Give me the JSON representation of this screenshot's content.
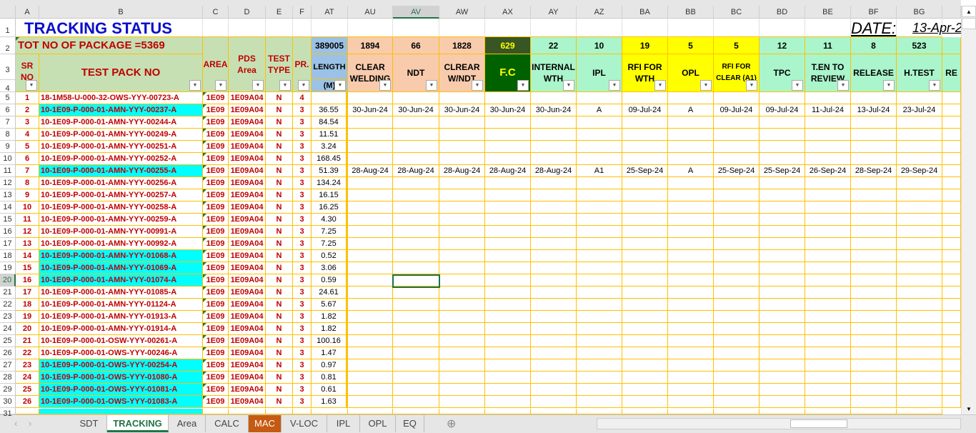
{
  "columns": [
    "A",
    "B",
    "C",
    "D",
    "E",
    "F",
    "AT",
    "AU",
    "AV",
    "AW",
    "AX",
    "AY",
    "AZ",
    "BA",
    "BB",
    "BC",
    "BD",
    "BE",
    "BF",
    "BG"
  ],
  "selected_column": "AV",
  "selected_row": 20,
  "title": "TRACKING STATUS",
  "date_label": "DATE:",
  "date_value": "13-Apr-2",
  "total_packages": "TOT NO OF PACKAGE =5369",
  "headers": {
    "sr": "SR NO",
    "pack": "TEST PACK NO",
    "area": "AREA",
    "pds": "PDS Area",
    "type": "TEST TYPE",
    "pr": "PR.",
    "length": "LENGTH",
    "length_unit": "(M)",
    "length_total": "389005"
  },
  "tracking_headers": [
    {
      "label": "CLEAR WELDING",
      "count": "1894",
      "color": "#f8cbad"
    },
    {
      "label": "NDT",
      "count": "66",
      "color": "#f8cbad"
    },
    {
      "label": "CLREAR W/NDT",
      "count": "1828",
      "color": "#f8cbad"
    },
    {
      "label": "F.C",
      "count": "629",
      "color": "#006100"
    },
    {
      "label": "INTERNAL WTH",
      "count": "22",
      "color": "#aaf5cb"
    },
    {
      "label": "IPL",
      "count": "10",
      "color": "#aaf5cb"
    },
    {
      "label": "RFI FOR WTH",
      "count": "19",
      "color": "#ffff00"
    },
    {
      "label": "OPL",
      "count": "5",
      "color": "#ffff00"
    },
    {
      "label": "RFI FOR CLEAR (A1)",
      "count": "5",
      "color": "#ffff00"
    },
    {
      "label": "TPC",
      "count": "12",
      "color": "#aaf5cb"
    },
    {
      "label": "T.EN TO REVIEW",
      "count": "11",
      "color": "#aaf5cb"
    },
    {
      "label": "RELEASE",
      "count": "8",
      "color": "#aaf5cb"
    },
    {
      "label": "H.TEST",
      "count": "523",
      "color": "#aaf5cb"
    },
    {
      "label": "RE",
      "count": "",
      "color": "#aaf5cb"
    }
  ],
  "rows": [
    {
      "sr": "1",
      "pack": "18-1M58-U-000-32-OWS-YYY-00723-A",
      "area": "1E09",
      "pds": "1E09A04",
      "type": "N",
      "pr": "4",
      "len": "",
      "hl": false,
      "t": []
    },
    {
      "sr": "2",
      "pack": "10-1E09-P-000-01-AMN-YYY-00237-A",
      "area": "1E09",
      "pds": "1E09A04",
      "type": "N",
      "pr": "3",
      "len": "36.55",
      "hl": true,
      "t": [
        "30-Jun-24",
        "30-Jun-24",
        "30-Jun-24",
        "30-Jun-24",
        "30-Jun-24",
        "A",
        "09-Jul-24",
        "A",
        "09-Jul-24",
        "09-Jul-24",
        "11-Jul-24",
        "13-Jul-24",
        "23-Jul-24"
      ]
    },
    {
      "sr": "3",
      "pack": "10-1E09-P-000-01-AMN-YYY-00244-A",
      "area": "1E09",
      "pds": "1E09A04",
      "type": "N",
      "pr": "3",
      "len": "84.54",
      "hl": false,
      "t": []
    },
    {
      "sr": "4",
      "pack": "10-1E09-P-000-01-AMN-YYY-00249-A",
      "area": "1E09",
      "pds": "1E09A04",
      "type": "N",
      "pr": "3",
      "len": "11.51",
      "hl": false,
      "t": []
    },
    {
      "sr": "5",
      "pack": "10-1E09-P-000-01-AMN-YYY-00251-A",
      "area": "1E09",
      "pds": "1E09A04",
      "type": "N",
      "pr": "3",
      "len": "3.24",
      "hl": false,
      "t": []
    },
    {
      "sr": "6",
      "pack": "10-1E09-P-000-01-AMN-YYY-00252-A",
      "area": "1E09",
      "pds": "1E09A04",
      "type": "N",
      "pr": "3",
      "len": "168.45",
      "hl": false,
      "t": []
    },
    {
      "sr": "7",
      "pack": "10-1E09-P-000-01-AMN-YYY-00255-A",
      "area": "1E09",
      "pds": "1E09A04",
      "type": "N",
      "pr": "3",
      "len": "51.39",
      "hl": true,
      "t": [
        "28-Aug-24",
        "28-Aug-24",
        "28-Aug-24",
        "28-Aug-24",
        "28-Aug-24",
        "A1",
        "25-Sep-24",
        "A",
        "25-Sep-24",
        "25-Sep-24",
        "26-Sep-24",
        "28-Sep-24",
        "29-Sep-24"
      ]
    },
    {
      "sr": "8",
      "pack": "10-1E09-P-000-01-AMN-YYY-00256-A",
      "area": "1E09",
      "pds": "1E09A04",
      "type": "N",
      "pr": "3",
      "len": "134.24",
      "hl": false,
      "t": []
    },
    {
      "sr": "9",
      "pack": "10-1E09-P-000-01-AMN-YYY-00257-A",
      "area": "1E09",
      "pds": "1E09A04",
      "type": "N",
      "pr": "3",
      "len": "16.15",
      "hl": false,
      "t": []
    },
    {
      "sr": "10",
      "pack": "10-1E09-P-000-01-AMN-YYY-00258-A",
      "area": "1E09",
      "pds": "1E09A04",
      "type": "N",
      "pr": "3",
      "len": "16.25",
      "hl": false,
      "t": []
    },
    {
      "sr": "11",
      "pack": "10-1E09-P-000-01-AMN-YYY-00259-A",
      "area": "1E09",
      "pds": "1E09A04",
      "type": "N",
      "pr": "3",
      "len": "4.30",
      "hl": false,
      "t": []
    },
    {
      "sr": "12",
      "pack": "10-1E09-P-000-01-AMN-YYY-00991-A",
      "area": "1E09",
      "pds": "1E09A04",
      "type": "N",
      "pr": "3",
      "len": "7.25",
      "hl": false,
      "t": []
    },
    {
      "sr": "13",
      "pack": "10-1E09-P-000-01-AMN-YYY-00992-A",
      "area": "1E09",
      "pds": "1E09A04",
      "type": "N",
      "pr": "3",
      "len": "7.25",
      "hl": false,
      "t": []
    },
    {
      "sr": "14",
      "pack": "10-1E09-P-000-01-AMN-YYY-01068-A",
      "area": "1E09",
      "pds": "1E09A04",
      "type": "N",
      "pr": "3",
      "len": "0.52",
      "hl": true,
      "t": []
    },
    {
      "sr": "15",
      "pack": "10-1E09-P-000-01-AMN-YYY-01069-A",
      "area": "1E09",
      "pds": "1E09A04",
      "type": "N",
      "pr": "3",
      "len": "3.06",
      "hl": true,
      "t": []
    },
    {
      "sr": "16",
      "pack": "10-1E09-P-000-01-AMN-YYY-01074-A",
      "area": "1E09",
      "pds": "1E09A04",
      "type": "N",
      "pr": "3",
      "len": "0.59",
      "hl": true,
      "t": []
    },
    {
      "sr": "17",
      "pack": "10-1E09-P-000-01-AMN-YYY-01085-A",
      "area": "1E09",
      "pds": "1E09A04",
      "type": "N",
      "pr": "3",
      "len": "24.61",
      "hl": false,
      "t": []
    },
    {
      "sr": "18",
      "pack": "10-1E09-P-000-01-AMN-YYY-01124-A",
      "area": "1E09",
      "pds": "1E09A04",
      "type": "N",
      "pr": "3",
      "len": "5.67",
      "hl": false,
      "t": []
    },
    {
      "sr": "19",
      "pack": "10-1E09-P-000-01-AMN-YYY-01913-A",
      "area": "1E09",
      "pds": "1E09A04",
      "type": "N",
      "pr": "3",
      "len": "1.82",
      "hl": false,
      "t": []
    },
    {
      "sr": "20",
      "pack": "10-1E09-P-000-01-AMN-YYY-01914-A",
      "area": "1E09",
      "pds": "1E09A04",
      "type": "N",
      "pr": "3",
      "len": "1.82",
      "hl": false,
      "t": []
    },
    {
      "sr": "21",
      "pack": "10-1E09-P-000-01-OSW-YYY-00261-A",
      "area": "1E09",
      "pds": "1E09A04",
      "type": "N",
      "pr": "3",
      "len": "100.16",
      "hl": false,
      "t": []
    },
    {
      "sr": "22",
      "pack": "10-1E09-P-000-01-OWS-YYY-00246-A",
      "area": "1E09",
      "pds": "1E09A04",
      "type": "N",
      "pr": "3",
      "len": "1.47",
      "hl": false,
      "t": []
    },
    {
      "sr": "23",
      "pack": "10-1E09-P-000-01-OWS-YYY-00254-A",
      "area": "1E09",
      "pds": "1E09A04",
      "type": "N",
      "pr": "3",
      "len": "0.97",
      "hl": true,
      "t": []
    },
    {
      "sr": "24",
      "pack": "10-1E09-P-000-01-OWS-YYY-01080-A",
      "area": "1E09",
      "pds": "1E09A04",
      "type": "N",
      "pr": "3",
      "len": "0.81",
      "hl": true,
      "t": []
    },
    {
      "sr": "25",
      "pack": "10-1E09-P-000-01-OWS-YYY-01081-A",
      "area": "1E09",
      "pds": "1E09A04",
      "type": "N",
      "pr": "3",
      "len": "0.61",
      "hl": true,
      "t": []
    },
    {
      "sr": "26",
      "pack": "10-1E09-P-000-01-OWS-YYY-01083-A",
      "area": "1E09",
      "pds": "1E09A04",
      "type": "N",
      "pr": "3",
      "len": "1.63",
      "hl": true,
      "t": []
    }
  ],
  "sheet_tabs": [
    "SDT",
    "TRACKING",
    "Area",
    "CALC",
    "MAC",
    "V-LOC",
    "IPL",
    "OPL",
    "EQ"
  ],
  "active_tab": "TRACKING",
  "colors": {
    "header_green": "#c6e0b4",
    "length_blue": "#9bc2e6",
    "highlight_cyan": "#00ffff",
    "text_red": "#c00000",
    "grid": "#ffc000",
    "mac_tab": "#c55a11"
  }
}
